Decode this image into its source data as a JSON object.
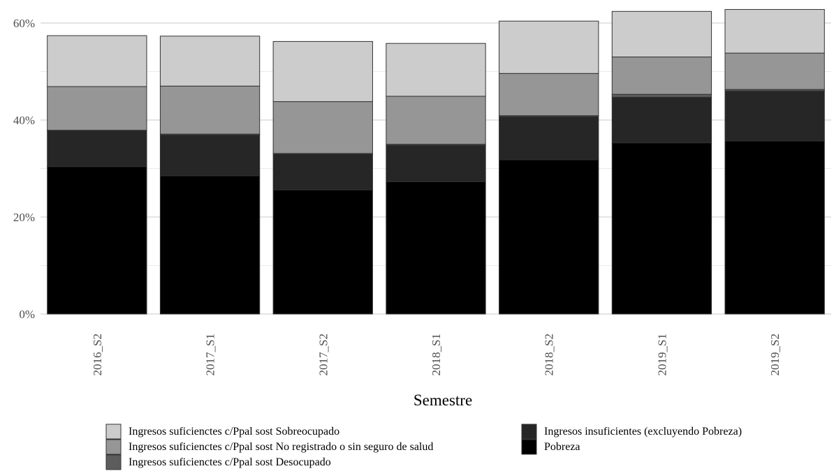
{
  "chart_data": {
    "type": "bar",
    "stacked": true,
    "xlabel": "Semestre",
    "ylabel": "",
    "ylim": [
      0,
      0.6
    ],
    "y_ticks": [
      0,
      0.2,
      0.4,
      0.6
    ],
    "y_tick_labels": [
      "0%",
      "20%",
      "40%",
      "60%"
    ],
    "grid": true,
    "legend_position": "bottom",
    "categories": [
      "2016_S2",
      "2017_S1",
      "2017_S2",
      "2018_S1",
      "2018_S2",
      "2019_S1",
      "2019_S2"
    ],
    "series": [
      {
        "name": "Pobreza",
        "color": "#000000",
        "values": [
          0.304,
          0.285,
          0.256,
          0.273,
          0.318,
          0.353,
          0.357
        ]
      },
      {
        "name": "Ingresos insuficientes (excluyendo Pobreza)",
        "color": "#262626",
        "values": [
          0.074,
          0.084,
          0.074,
          0.075,
          0.089,
          0.094,
          0.103
        ]
      },
      {
        "name": "Ingresos suficienctes c/Ppal sost Desocupado",
        "color": "#5c5c5c",
        "values": [
          0.001,
          0.002,
          0.001,
          0.002,
          0.002,
          0.006,
          0.003
        ]
      },
      {
        "name": "Ingresos suficienctes c/Ppal sost No registrado o sin seguro de salud",
        "color": "#969696",
        "values": [
          0.09,
          0.099,
          0.107,
          0.099,
          0.087,
          0.077,
          0.075
        ]
      },
      {
        "name": "Ingresos suficienctes c/Ppal sost Sobreocupado",
        "color": "#cccccc",
        "values": [
          0.105,
          0.103,
          0.124,
          0.109,
          0.108,
          0.094,
          0.09
        ]
      }
    ]
  },
  "legend": {
    "column1": [
      {
        "label": "Ingresos suficienctes c/Ppal sost Sobreocupado",
        "color": "#cccccc"
      },
      {
        "label": "Ingresos suficienctes c/Ppal sost No registrado o sin seguro de salud",
        "color": "#969696"
      },
      {
        "label": "Ingresos suficienctes c/Ppal sost Desocupado",
        "color": "#5c5c5c"
      }
    ],
    "column2": [
      {
        "label": "Ingresos insuficientes (excluyendo Pobreza)",
        "color": "#262626"
      },
      {
        "label": "Pobreza",
        "color": "#000000"
      }
    ]
  }
}
